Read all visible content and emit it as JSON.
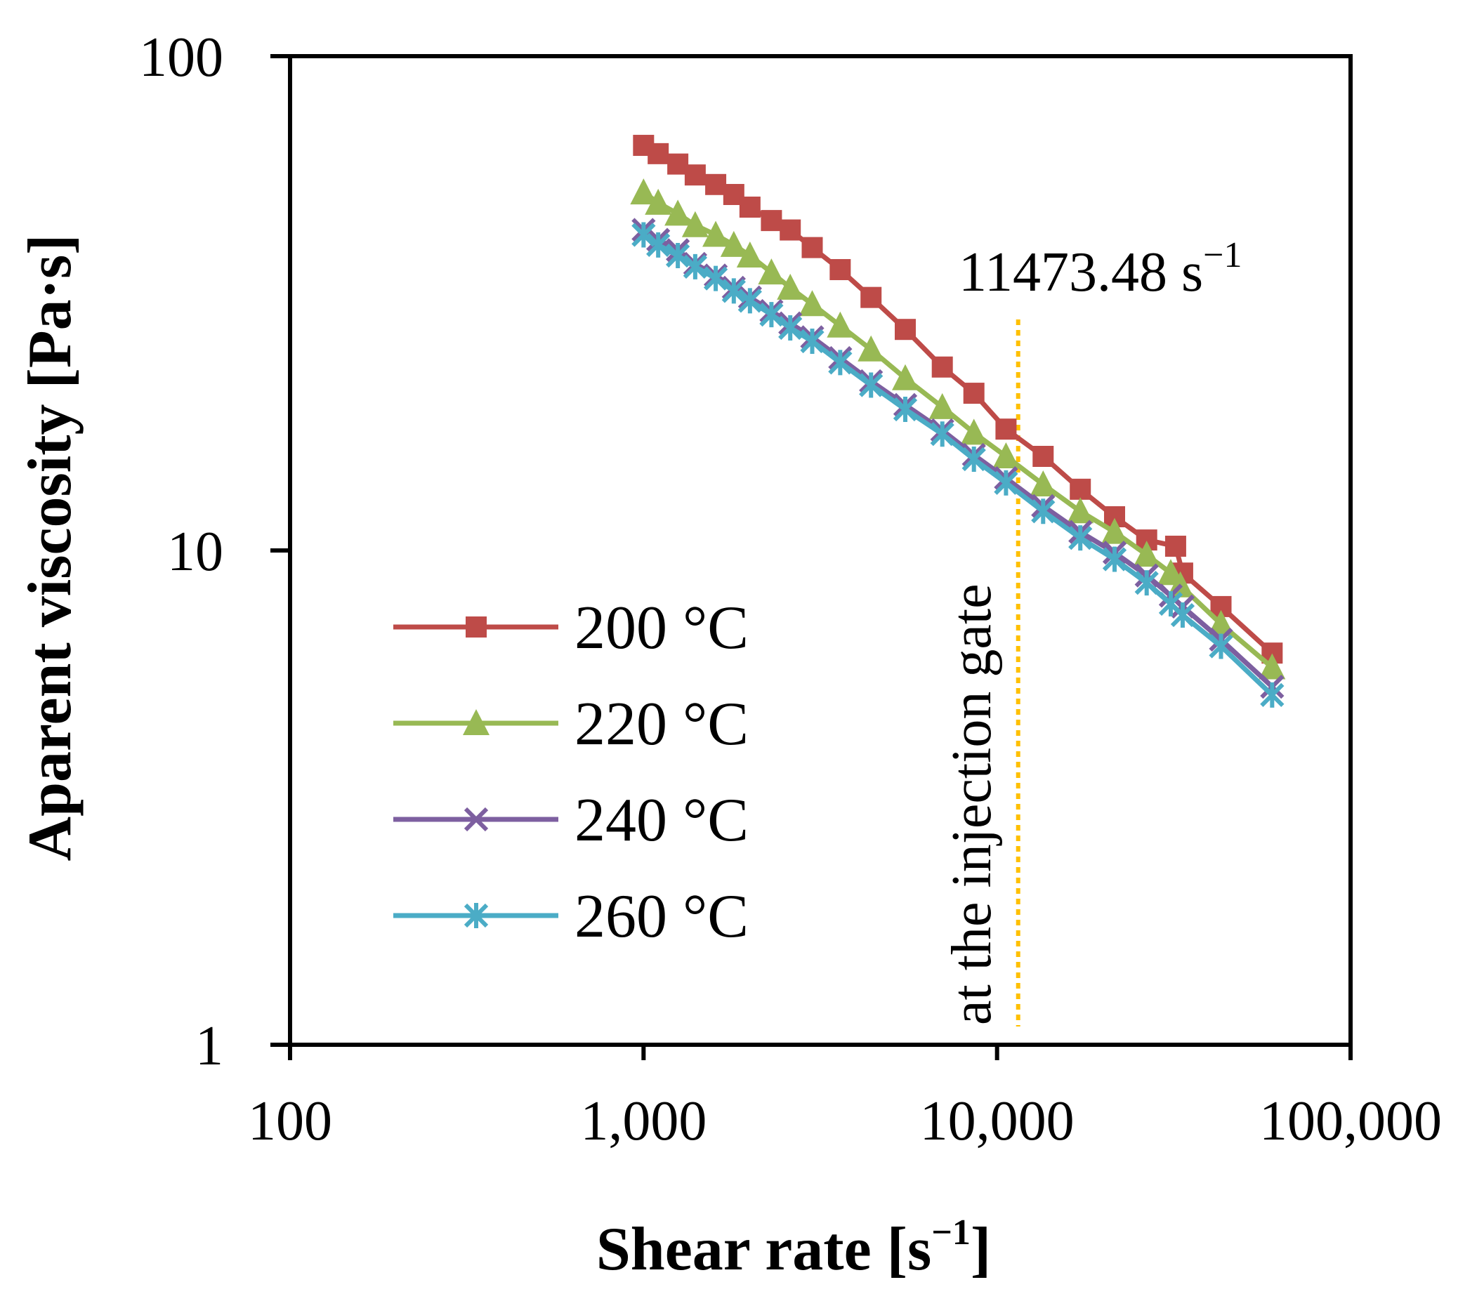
{
  "chart_data": {
    "type": "line",
    "xscale": "log",
    "yscale": "log",
    "xlim": [
      100,
      100000
    ],
    "ylim": [
      1,
      100
    ],
    "xlabel": "Shear rate [s",
    "xlabel_sup": "−1",
    "xlabel_end": "]",
    "ylabel": "Aparent viscosity [Pa·s]",
    "x_ticks": [
      {
        "value": 100,
        "label": "100"
      },
      {
        "value": 1000,
        "label": "1,000"
      },
      {
        "value": 10000,
        "label": "10,000"
      },
      {
        "value": 100000,
        "label": "100,000"
      }
    ],
    "y_ticks": [
      {
        "value": 1,
        "label": "1"
      },
      {
        "value": 10,
        "label": "10"
      },
      {
        "value": 100,
        "label": "100"
      }
    ],
    "legend_position": "lower-left",
    "series": [
      {
        "name": "200 °C",
        "color": "#BE4B48",
        "marker": "square",
        "points": [
          [
            1000,
            66
          ],
          [
            1100,
            63.5
          ],
          [
            1250,
            60.5
          ],
          [
            1400,
            57.5
          ],
          [
            1600,
            55
          ],
          [
            1800,
            52.5
          ],
          [
            2000,
            49.5
          ],
          [
            2300,
            46.5
          ],
          [
            2600,
            44.5
          ],
          [
            3000,
            41
          ],
          [
            3600,
            37
          ],
          [
            4400,
            32.5
          ],
          [
            5500,
            28
          ],
          [
            7000,
            23.5
          ],
          [
            8600,
            20.8
          ],
          [
            10600,
            17.6
          ],
          [
            13500,
            15.5
          ],
          [
            17200,
            13.3
          ],
          [
            21500,
            11.7
          ],
          [
            26500,
            10.5
          ],
          [
            32000,
            10.2
          ],
          [
            33500,
            9
          ],
          [
            43000,
            7.7
          ],
          [
            60000,
            6.2
          ]
        ]
      },
      {
        "name": "220 °C",
        "color": "#98B954",
        "marker": "triangle",
        "points": [
          [
            1000,
            53
          ],
          [
            1100,
            50.5
          ],
          [
            1250,
            48
          ],
          [
            1400,
            45.5
          ],
          [
            1600,
            43.5
          ],
          [
            1800,
            41.5
          ],
          [
            2000,
            39.5
          ],
          [
            2300,
            36.5
          ],
          [
            2600,
            34
          ],
          [
            3000,
            31.5
          ],
          [
            3600,
            28.5
          ],
          [
            4400,
            25.5
          ],
          [
            5500,
            22.3
          ],
          [
            7000,
            19.5
          ],
          [
            8600,
            17.3
          ],
          [
            10600,
            15.5
          ],
          [
            13500,
            13.6
          ],
          [
            17200,
            12
          ],
          [
            21500,
            10.9
          ],
          [
            26500,
            9.8
          ],
          [
            31000,
            9
          ],
          [
            33000,
            8.5
          ],
          [
            43000,
            7.1
          ],
          [
            60000,
            5.8
          ]
        ]
      },
      {
        "name": "240 °C",
        "color": "#7D5FA0",
        "marker": "x",
        "points": [
          [
            1000,
            44.5
          ],
          [
            1100,
            42.5
          ],
          [
            1250,
            40.5
          ],
          [
            1400,
            38
          ],
          [
            1600,
            36
          ],
          [
            1800,
            34
          ],
          [
            2000,
            32.5
          ],
          [
            2300,
            30.5
          ],
          [
            2600,
            28.8
          ],
          [
            3000,
            27
          ],
          [
            3600,
            24.5
          ],
          [
            4400,
            22
          ],
          [
            5500,
            19.7
          ],
          [
            7000,
            17.5
          ],
          [
            8600,
            15.6
          ],
          [
            10600,
            14
          ],
          [
            13500,
            12.3
          ],
          [
            17200,
            10.9
          ],
          [
            21500,
            9.9
          ],
          [
            26500,
            8.9
          ],
          [
            31000,
            8.1
          ],
          [
            33500,
            7.7
          ],
          [
            43000,
            6.6
          ],
          [
            60000,
            5.3
          ]
        ]
      },
      {
        "name": "260 °C",
        "color": "#4BACC6",
        "marker": "asterisk",
        "points": [
          [
            1000,
            43.5
          ],
          [
            1100,
            41.5
          ],
          [
            1250,
            39.5
          ],
          [
            1400,
            37.5
          ],
          [
            1600,
            35.5
          ],
          [
            1800,
            33.5
          ],
          [
            2000,
            32
          ],
          [
            2300,
            30
          ],
          [
            2600,
            28.2
          ],
          [
            3000,
            26.5
          ],
          [
            3600,
            24
          ],
          [
            4400,
            21.6
          ],
          [
            5500,
            19.3
          ],
          [
            7000,
            17.2
          ],
          [
            8600,
            15.3
          ],
          [
            10600,
            13.7
          ],
          [
            13500,
            12
          ],
          [
            17200,
            10.6
          ],
          [
            21500,
            9.6
          ],
          [
            26500,
            8.6
          ],
          [
            31000,
            7.8
          ],
          [
            33500,
            7.4
          ],
          [
            43000,
            6.4
          ],
          [
            60000,
            5.1
          ]
        ]
      }
    ],
    "reference_line": {
      "x": 11473.48,
      "color": "#FFC000",
      "label_value": "11473.48 s",
      "label_sup": "−1",
      "vertical_text": "at the injection gate"
    }
  }
}
